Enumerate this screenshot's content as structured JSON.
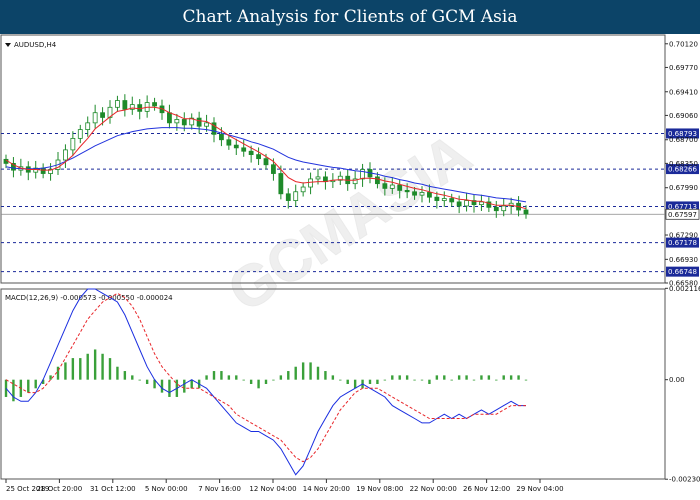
{
  "title": "Chart Analysis for Clients of GCM Asia",
  "symbol_label": "AUDUSD,H4",
  "macd_label": "MACD(12,26,9) -0.000573 -0.000550 -0.000024",
  "watermark": "GCMASIA",
  "colors": {
    "title_bg": "#0c4468",
    "candle": "#1e8a2a",
    "ma_fast": "#e8262a",
    "ma_slow": "#2233dd",
    "level_line": "#1b2a99",
    "level_label_bg": "#1b2a99",
    "macd_hist": "#3aa03a",
    "macd_line": "#1a2ee0",
    "signal_line": "#e8262a"
  },
  "chart_data": {
    "type": "candlestick",
    "price_ticks": [
      "0.70120",
      "0.69770",
      "0.69410",
      "0.69060",
      "0.68700",
      "0.68350",
      "0.67990",
      "0.67290",
      "0.66930",
      "0.66580"
    ],
    "ylim": [
      0.6658,
      0.7025
    ],
    "levels": [
      {
        "value": 0.68793,
        "label": "0.68793"
      },
      {
        "value": 0.68266,
        "label": "0.68266"
      },
      {
        "value": 0.67713,
        "label": "0.67713"
      },
      {
        "value": 0.67178,
        "label": "0.67178"
      },
      {
        "value": 0.66748,
        "label": "0.66748"
      }
    ],
    "current": {
      "value": 0.67597,
      "label": "0.67597"
    },
    "x_labels": [
      "25 Oct 2019",
      "28 Oct 20:00",
      "31 Oct 12:00",
      "5 Nov 00:00",
      "7 Nov 16:00",
      "12 Nov 04:00",
      "14 Nov 20:00",
      "19 Nov 08:00",
      "22 Nov 00:00",
      "26 Nov 12:00",
      "29 Nov 04:00"
    ],
    "closes": [
      0.6835,
      0.6825,
      0.683,
      0.6822,
      0.6828,
      0.682,
      0.6826,
      0.684,
      0.6855,
      0.6872,
      0.6885,
      0.6895,
      0.691,
      0.6903,
      0.6918,
      0.6928,
      0.6915,
      0.6922,
      0.6912,
      0.6925,
      0.692,
      0.691,
      0.6895,
      0.69,
      0.6892,
      0.6902,
      0.689,
      0.6895,
      0.6878,
      0.687,
      0.6862,
      0.6858,
      0.6853,
      0.6848,
      0.6842,
      0.6833,
      0.682,
      0.679,
      0.678,
      0.6793,
      0.68,
      0.6812,
      0.6815,
      0.6808,
      0.681,
      0.6816,
      0.6805,
      0.6812,
      0.6826,
      0.6815,
      0.6805,
      0.6798,
      0.6803,
      0.6795,
      0.6793,
      0.6788,
      0.6792,
      0.6785,
      0.678,
      0.6783,
      0.6778,
      0.6772,
      0.678,
      0.6774,
      0.6778,
      0.677,
      0.6765,
      0.6772,
      0.6776,
      0.6766,
      0.676
    ],
    "ma_fast": [
      0.684,
      0.6833,
      0.6828,
      0.6826,
      0.6826,
      0.6825,
      0.6825,
      0.6829,
      0.6837,
      0.6847,
      0.686,
      0.6872,
      0.6886,
      0.6895,
      0.6904,
      0.6912,
      0.6914,
      0.6917,
      0.6916,
      0.6918,
      0.6918,
      0.6916,
      0.691,
      0.6906,
      0.6901,
      0.6901,
      0.6898,
      0.6897,
      0.6891,
      0.6884,
      0.6876,
      0.687,
      0.6864,
      0.6858,
      0.6852,
      0.6845,
      0.6838,
      0.6826,
      0.6814,
      0.6808,
      0.6806,
      0.6807,
      0.6808,
      0.6808,
      0.681,
      0.6811,
      0.681,
      0.681,
      0.6813,
      0.6813,
      0.6812,
      0.6809,
      0.6807,
      0.6804,
      0.6801,
      0.6798,
      0.6796,
      0.6793,
      0.679,
      0.6788,
      0.6785,
      0.6782,
      0.6781,
      0.6779,
      0.6779,
      0.6776,
      0.6773,
      0.6773,
      0.6773,
      0.6771,
      0.6768
    ],
    "ma_slow": [
      0.683,
      0.6828,
      0.6827,
      0.6827,
      0.6827,
      0.6828,
      0.683,
      0.6833,
      0.6838,
      0.6843,
      0.6849,
      0.6855,
      0.6861,
      0.6866,
      0.6871,
      0.6876,
      0.6879,
      0.6882,
      0.6884,
      0.6886,
      0.6887,
      0.6888,
      0.6888,
      0.6888,
      0.6887,
      0.6887,
      0.6886,
      0.6885,
      0.6883,
      0.688,
      0.6877,
      0.6874,
      0.6871,
      0.6867,
      0.6864,
      0.686,
      0.6856,
      0.685,
      0.6844,
      0.684,
      0.6837,
      0.6835,
      0.6833,
      0.6831,
      0.6829,
      0.6828,
      0.6826,
      0.6824,
      0.6823,
      0.6821,
      0.6819,
      0.6816,
      0.6814,
      0.6811,
      0.6809,
      0.6806,
      0.6804,
      0.6801,
      0.6799,
      0.6797,
      0.6795,
      0.6793,
      0.6791,
      0.6789,
      0.6788,
      0.6786,
      0.6784,
      0.6783,
      0.6782,
      0.678,
      0.6778
    ],
    "macd_ticks": [
      "0.002116",
      "0.00",
      "-0.002305"
    ],
    "macd_ylim": [
      -0.0023,
      0.0021
    ],
    "macd_hist": [
      -0.0004,
      -0.0005,
      -0.0004,
      -0.0003,
      -0.0002,
      -0.0001,
      0.0001,
      0.0003,
      0.0004,
      0.0005,
      0.0005,
      0.0006,
      0.0007,
      0.0006,
      0.0005,
      0.0003,
      0.0002,
      0.0001,
      0.0,
      -0.0001,
      -0.0002,
      -0.0003,
      -0.0004,
      -0.0004,
      -0.0003,
      -0.0002,
      -0.0002,
      0.0001,
      0.0002,
      0.0002,
      0.0001,
      0.0001,
      0.0,
      -0.0001,
      -0.0002,
      -0.0001,
      0.0,
      0.0001,
      0.0002,
      0.0003,
      0.0004,
      0.0004,
      0.0003,
      0.0002,
      0.0001,
      0.0,
      -0.0001,
      -0.0002,
      -0.0002,
      -0.0001,
      -0.0001,
      0.0,
      0.0001,
      0.0001,
      0.0001,
      0.0,
      0.0,
      -0.0001,
      0.0001,
      0.0001,
      0.0,
      0.0001,
      0.0001,
      0.0,
      0.0001,
      0.0001,
      0.0,
      0.0001,
      0.0001,
      0.0001,
      0.0
    ],
    "macd_line": [
      -0.0002,
      -0.0004,
      -0.0005,
      -0.0005,
      -0.0003,
      0.0,
      0.0004,
      0.0008,
      0.0012,
      0.0016,
      0.0019,
      0.0021,
      0.0021,
      0.002,
      0.0019,
      0.0018,
      0.0015,
      0.0011,
      0.0007,
      0.0003,
      0.0,
      -0.0002,
      -0.0003,
      -0.0002,
      -0.0001,
      0.0,
      -0.0001,
      -0.0002,
      -0.0004,
      -0.0006,
      -0.0008,
      -0.001,
      -0.0011,
      -0.0012,
      -0.0012,
      -0.0013,
      -0.0014,
      -0.0016,
      -0.0019,
      -0.0022,
      -0.002,
      -0.0016,
      -0.0012,
      -0.0009,
      -0.0006,
      -0.0004,
      -0.0003,
      -0.0002,
      -0.0001,
      -0.0002,
      -0.0003,
      -0.0004,
      -0.0006,
      -0.0007,
      -0.0008,
      -0.0009,
      -0.001,
      -0.001,
      -0.0009,
      -0.0008,
      -0.0009,
      -0.0008,
      -0.0009,
      -0.0008,
      -0.0007,
      -0.0008,
      -0.0007,
      -0.0006,
      -0.0005,
      -0.0006,
      -0.0006
    ],
    "signal_line": [
      0.0,
      -0.0001,
      -0.0002,
      -0.0003,
      -0.0003,
      -0.0002,
      0.0,
      0.0002,
      0.0005,
      0.0008,
      0.0011,
      0.0014,
      0.0016,
      0.0018,
      0.0019,
      0.002,
      0.0019,
      0.0017,
      0.0014,
      0.001,
      0.0006,
      0.0003,
      0.0001,
      -0.0001,
      -0.0002,
      -0.0002,
      -0.0002,
      -0.0003,
      -0.0004,
      -0.0005,
      -0.0006,
      -0.0008,
      -0.0009,
      -0.001,
      -0.0011,
      -0.0012,
      -0.0013,
      -0.0014,
      -0.0016,
      -0.0018,
      -0.0019,
      -0.0018,
      -0.0016,
      -0.0013,
      -0.001,
      -0.0007,
      -0.0005,
      -0.0003,
      -0.0002,
      -0.0002,
      -0.0002,
      -0.0003,
      -0.0004,
      -0.0005,
      -0.0006,
      -0.0007,
      -0.0008,
      -0.0009,
      -0.0009,
      -0.0009,
      -0.0009,
      -0.0009,
      -0.0009,
      -0.0008,
      -0.0008,
      -0.0008,
      -0.0008,
      -0.0007,
      -0.0006,
      -0.0006,
      -0.0006
    ]
  }
}
